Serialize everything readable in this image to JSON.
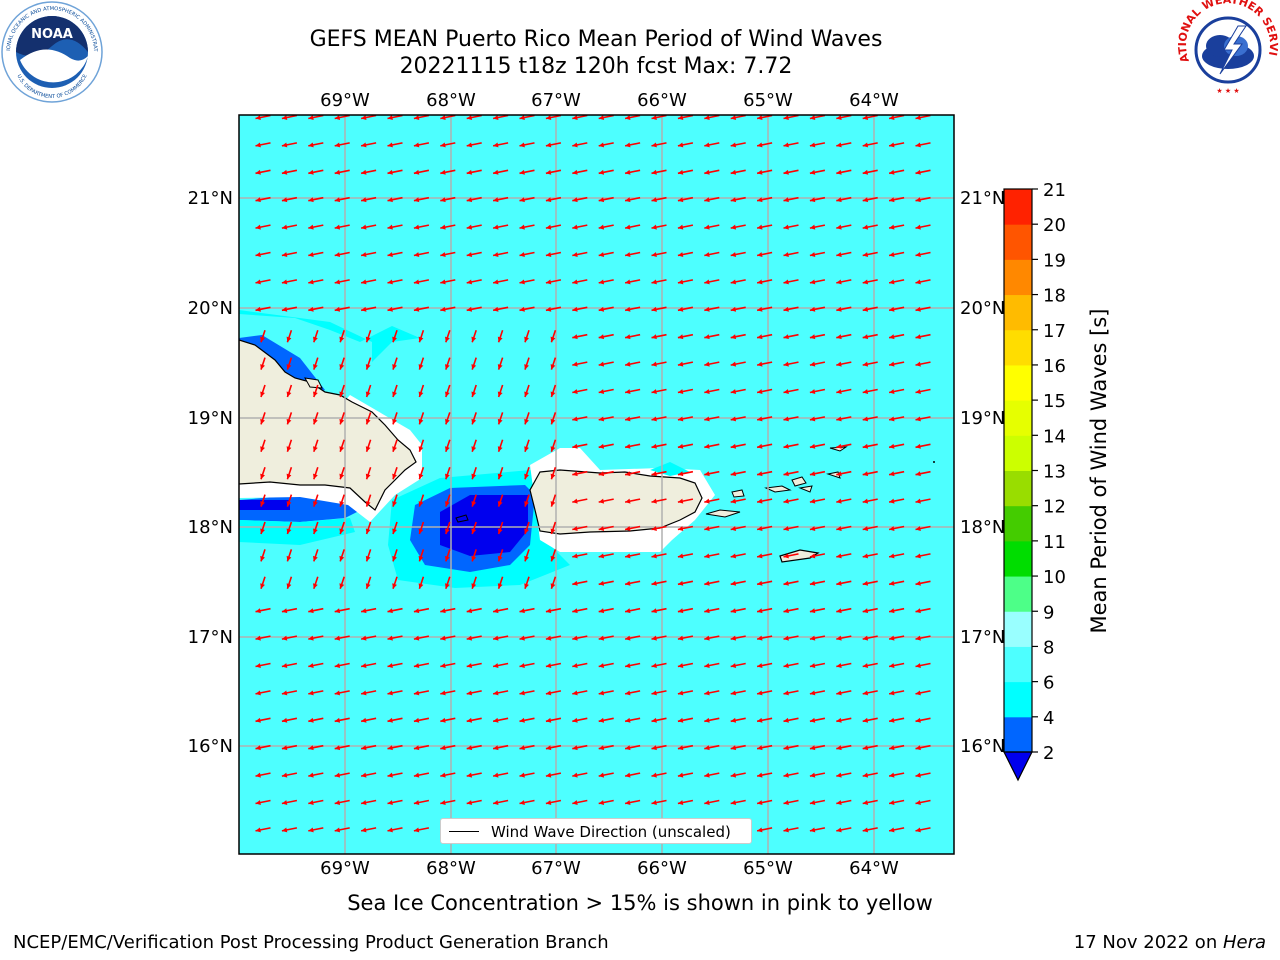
{
  "header": {
    "title_line1": "GEFS MEAN Puerto Rico Mean Period of Wind Waves",
    "title_line2": "20221115 t18z 120h fcst   Max: 7.72"
  },
  "logos": {
    "left": "NOAA",
    "left_ring_top": "NATIONAL OCEANIC AND ATMOSPHERIC ADMINISTRATION",
    "left_ring_bottom": "U.S. DEPARTMENT OF COMMERCE",
    "right_ring": "NATIONAL WEATHER SERVICE"
  },
  "map": {
    "lon_labels": [
      "69°W",
      "68°W",
      "67°W",
      "66°W",
      "65°W",
      "64°W"
    ],
    "lat_labels": [
      "21°N",
      "20°N",
      "19°N",
      "18°N",
      "17°N",
      "16°N"
    ],
    "lon_range": [
      -70.0,
      -63.25
    ],
    "lat_range": [
      15.05,
      21.75
    ],
    "ocean_color": "#4dffff",
    "land_color": "#efeedd",
    "arrow_color": "#ff0000",
    "wind_direction": "from east-northeast"
  },
  "legend": {
    "label": "Wind Wave Direction (unscaled)"
  },
  "colorbar": {
    "label": "Mean Period of Wind Waves [s]",
    "ticks": [
      "2",
      "4",
      "6",
      "8",
      "9",
      "10",
      "11",
      "12",
      "13",
      "14",
      "15",
      "16",
      "17",
      "18",
      "19",
      "20",
      "21"
    ],
    "colors": [
      "#0066ff",
      "#00ffff",
      "#4dffff",
      "#99ffff",
      "#4dff88",
      "#00dd00",
      "#44cc00",
      "#99dd00",
      "#ccff00",
      "#e6ff00",
      "#ffff00",
      "#ffdd00",
      "#ffbb00",
      "#ff8800",
      "#ff5500",
      "#ff2200"
    ],
    "under_color": "#0000ee"
  },
  "footer": {
    "note": "Sea Ice Concentration > 15% is shown in pink to yellow",
    "left": "NCEP/EMC/Verification Post Processing Product Generation Branch",
    "right_prefix": "17 Nov 2022 on ",
    "right_host": "Hera"
  }
}
